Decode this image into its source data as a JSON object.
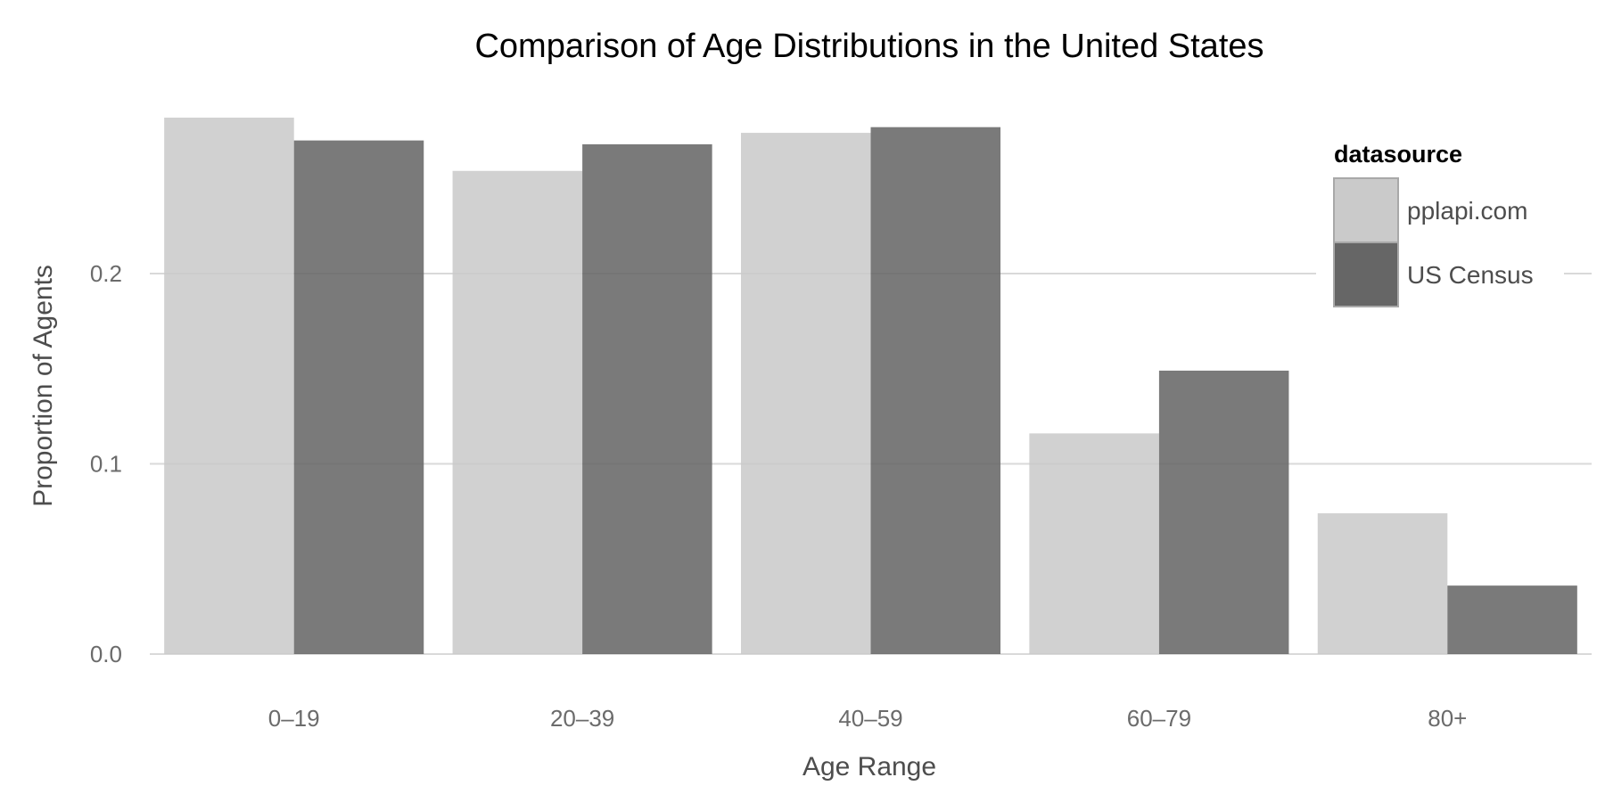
{
  "chart_data": {
    "type": "bar",
    "title": "Comparison of Age Distributions in the United States",
    "xlabel": "Age Range",
    "ylabel": "Proportion of Agents",
    "categories": [
      "0–19",
      "20–39",
      "40–59",
      "60–79",
      "80+"
    ],
    "series": [
      {
        "name": "pplapi.com",
        "color": "#cacaca",
        "values": [
          0.282,
          0.254,
          0.274,
          0.116,
          0.074
        ]
      },
      {
        "name": "US Census",
        "color": "#666666",
        "values": [
          0.27,
          0.268,
          0.277,
          0.149,
          0.036
        ]
      }
    ],
    "yticks": [
      0.0,
      0.1,
      0.2
    ],
    "ytick_labels": [
      "0.0",
      "0.1",
      "0.2"
    ],
    "ylim": [
      0,
      0.282
    ],
    "grid": true,
    "legend": {
      "title": "datasource",
      "position": "top-right"
    }
  }
}
